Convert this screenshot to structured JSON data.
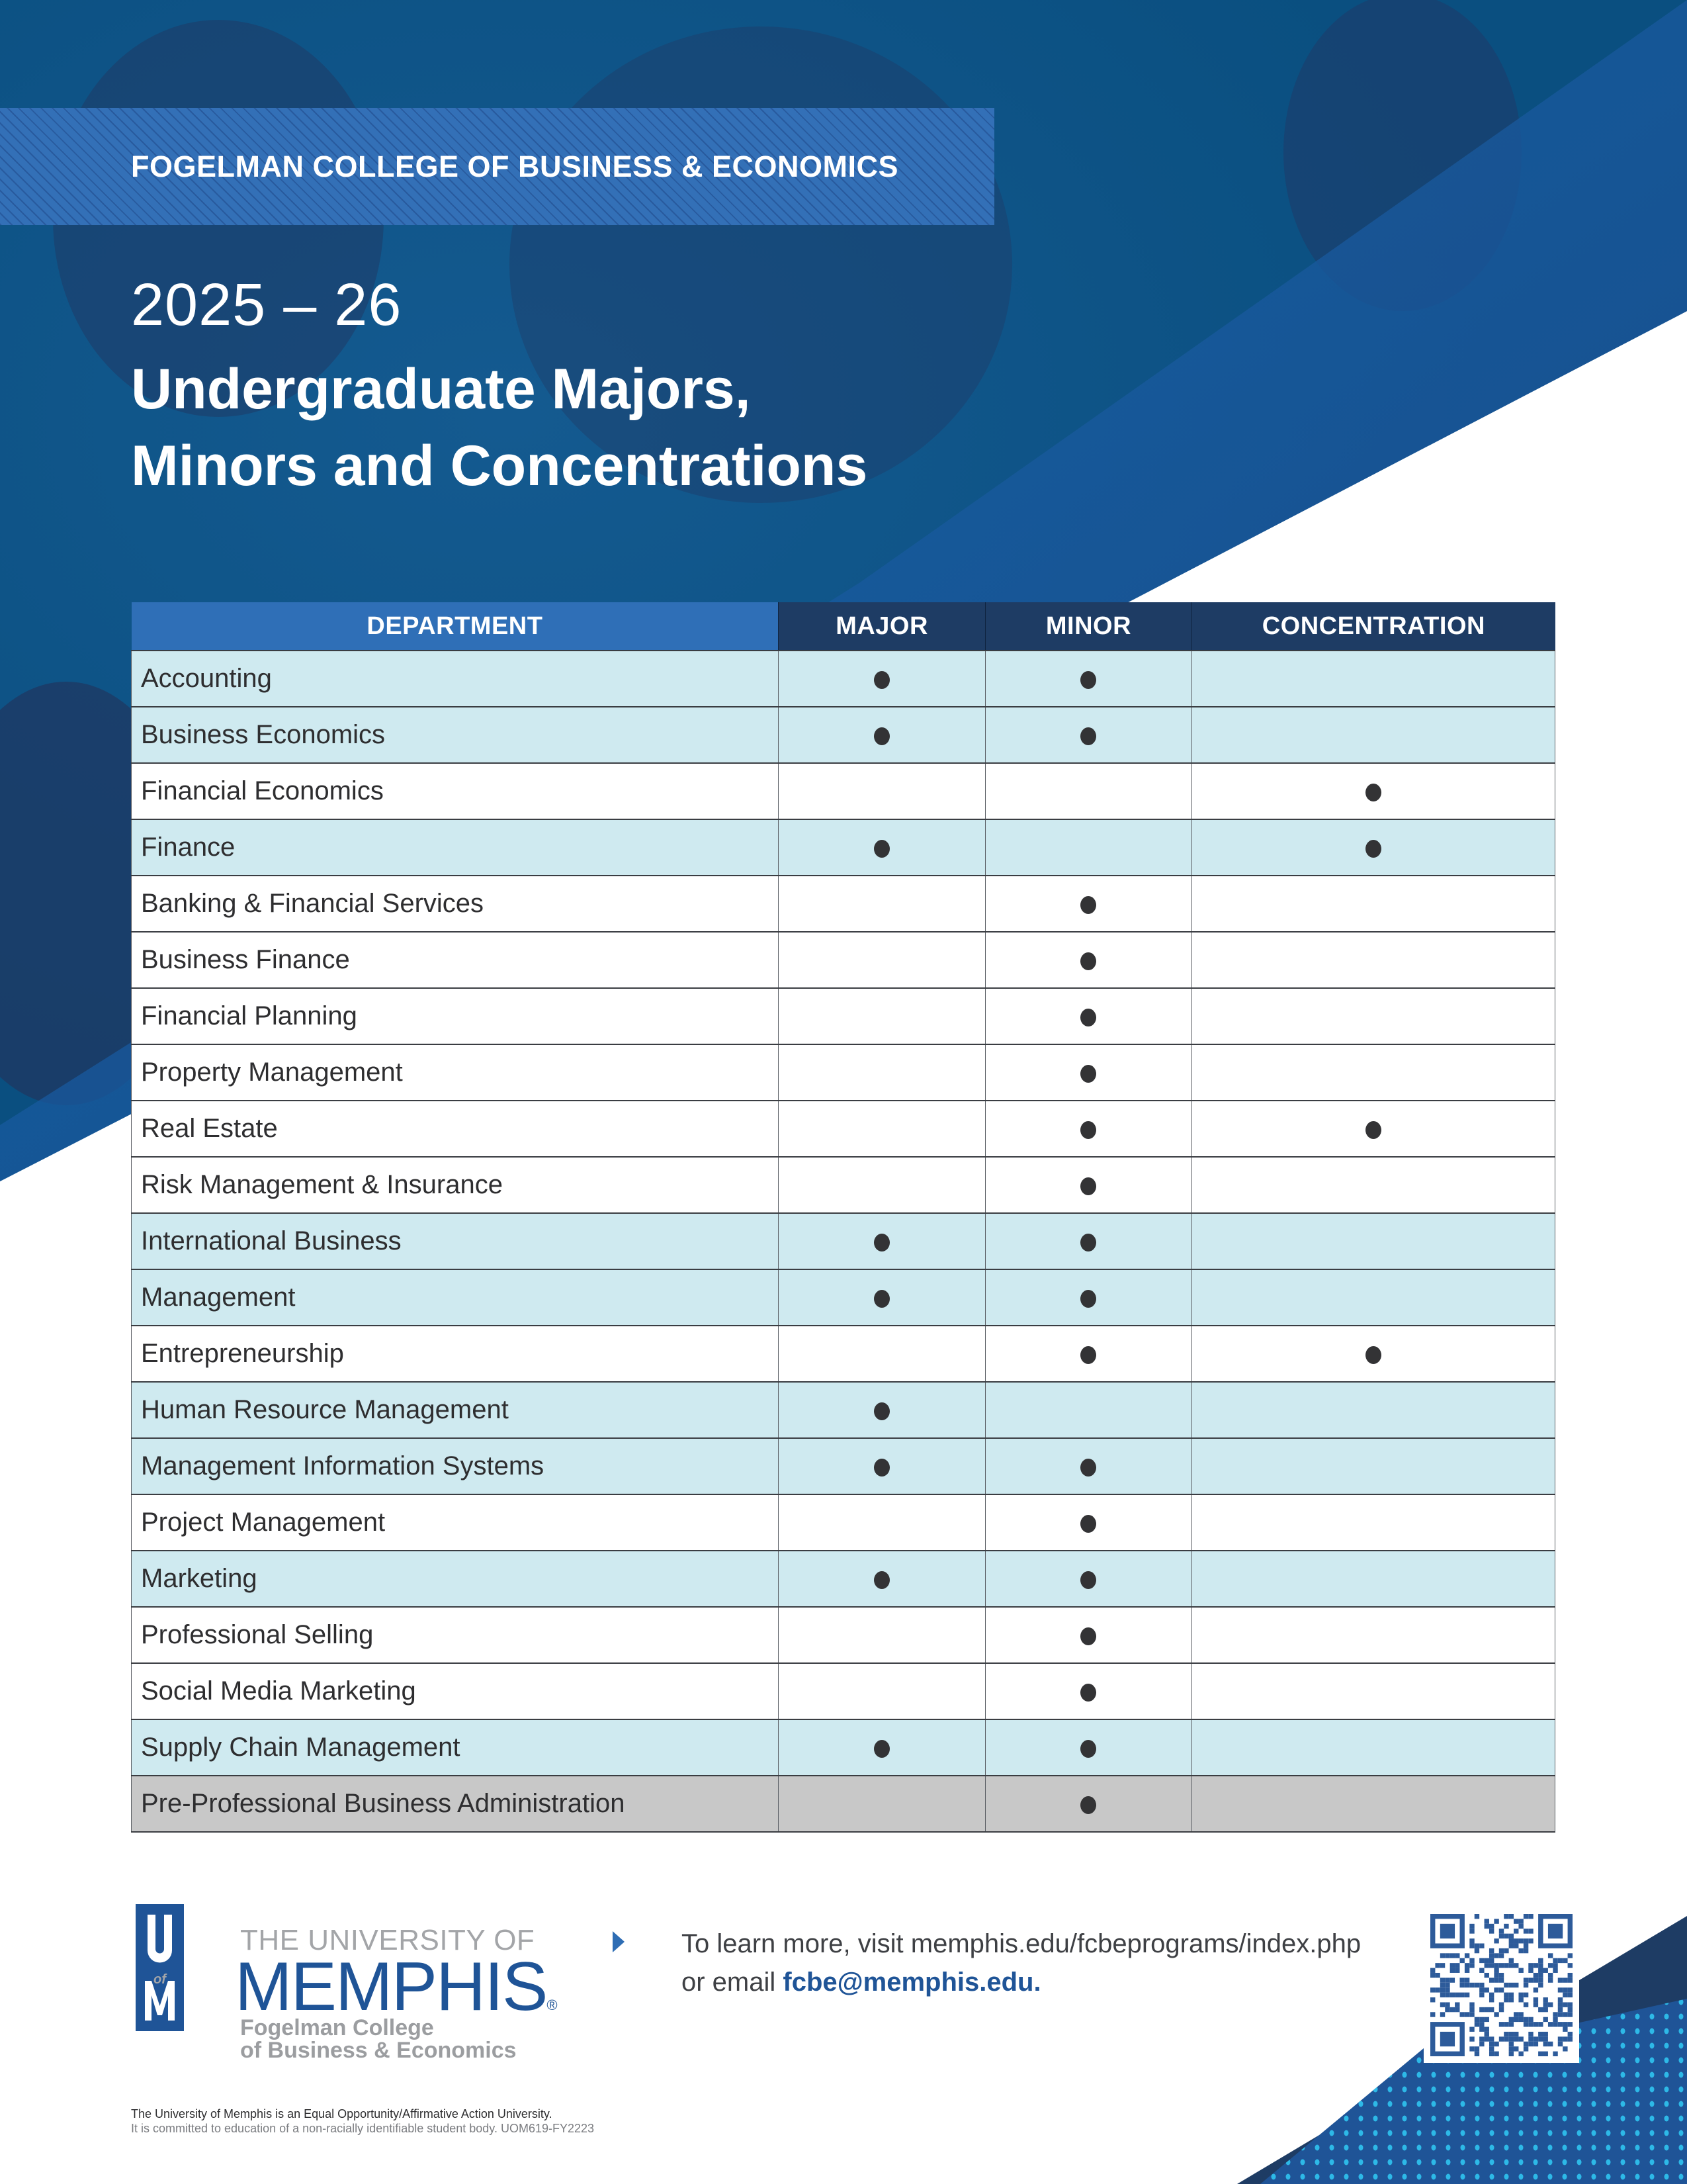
{
  "header": {
    "college_band": "FOGELMAN COLLEGE OF BUSINESS & ECONOMICS",
    "year": "2025 – 26",
    "title_line1": "Undergraduate Majors,",
    "title_line2": "Minors and Concentrations"
  },
  "table": {
    "columns": [
      "DEPARTMENT",
      "MAJOR",
      "MINOR",
      "CONCENTRATION"
    ],
    "marker_glyph": "●",
    "rows": [
      {
        "department": "Accounting",
        "major": true,
        "minor": true,
        "concentration": false,
        "shade": "blue"
      },
      {
        "department": "Business Economics",
        "major": true,
        "minor": true,
        "concentration": false,
        "shade": "blue"
      },
      {
        "department": "Financial Economics",
        "major": false,
        "minor": false,
        "concentration": true,
        "shade": "white"
      },
      {
        "department": "Finance",
        "major": true,
        "minor": false,
        "concentration": true,
        "shade": "blue"
      },
      {
        "department": "Banking & Financial Services",
        "major": false,
        "minor": true,
        "concentration": false,
        "shade": "white"
      },
      {
        "department": "Business Finance",
        "major": false,
        "minor": true,
        "concentration": false,
        "shade": "white"
      },
      {
        "department": "Financial Planning",
        "major": false,
        "minor": true,
        "concentration": false,
        "shade": "white"
      },
      {
        "department": "Property Management",
        "major": false,
        "minor": true,
        "concentration": false,
        "shade": "white"
      },
      {
        "department": "Real Estate",
        "major": false,
        "minor": true,
        "concentration": true,
        "shade": "white"
      },
      {
        "department": "Risk Management & Insurance",
        "major": false,
        "minor": true,
        "concentration": false,
        "shade": "white"
      },
      {
        "department": "International Business",
        "major": true,
        "minor": true,
        "concentration": false,
        "shade": "blue"
      },
      {
        "department": "Management",
        "major": true,
        "minor": true,
        "concentration": false,
        "shade": "blue"
      },
      {
        "department": "Entrepreneurship",
        "major": false,
        "minor": true,
        "concentration": true,
        "shade": "white"
      },
      {
        "department": "Human Resource Management",
        "major": true,
        "minor": false,
        "concentration": false,
        "shade": "blue"
      },
      {
        "department": "Management Information Systems",
        "major": true,
        "minor": true,
        "concentration": false,
        "shade": "blue"
      },
      {
        "department": "Project Management",
        "major": false,
        "minor": true,
        "concentration": false,
        "shade": "white"
      },
      {
        "department": "Marketing",
        "major": true,
        "minor": true,
        "concentration": false,
        "shade": "blue"
      },
      {
        "department": "Professional Selling",
        "major": false,
        "minor": true,
        "concentration": false,
        "shade": "white"
      },
      {
        "department": "Social Media Marketing",
        "major": false,
        "minor": true,
        "concentration": false,
        "shade": "white"
      },
      {
        "department": "Supply Chain Management",
        "major": true,
        "minor": true,
        "concentration": false,
        "shade": "blue"
      },
      {
        "department": "Pre-Professional Business Administration",
        "major": false,
        "minor": true,
        "concentration": false,
        "shade": "grey"
      }
    ]
  },
  "logo": {
    "emblem_top": "U",
    "emblem_mid": "of",
    "emblem_bottom": "M",
    "line1": "THE UNIVERSITY OF",
    "line2": "MEMPHIS",
    "registered": "®",
    "college_line1": "Fogelman College",
    "college_line2": "of Business & Economics"
  },
  "contact": {
    "line1": "To learn more, visit memphis.edu/fcbeprograms/index.php",
    "line2_prefix": "or email ",
    "email": "fcbe@memphis.edu."
  },
  "qr": {
    "label": "qr-code"
  },
  "footer": {
    "eeo_line1": "The University of Memphis is an Equal Opportunity/Affirmative Action University.",
    "eeo_line2": "It is committed to education of a non-racially identifiable student body. UOM619-FY2223"
  },
  "colors": {
    "hero_base": "#0a5a8c",
    "band": "#3370b7",
    "header_dept": "#2f6fb7",
    "header_cols": "#1e3c64",
    "row_blue": "#cfeaf0",
    "row_grey": "#c8c8c8",
    "brand_blue": "#1f5497",
    "dot_cyan": "#2fc4f0"
  }
}
